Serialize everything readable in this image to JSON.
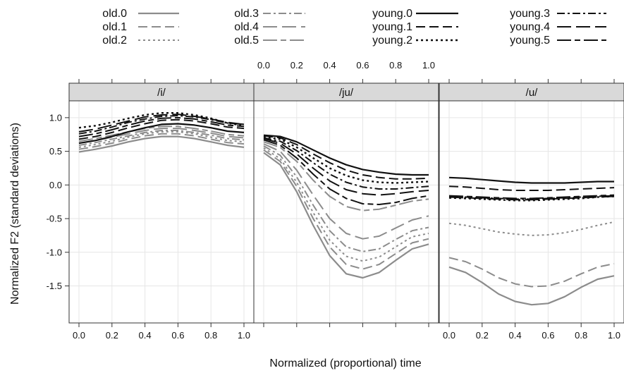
{
  "chart_data": {
    "type": "line",
    "xlabel": "Normalized (proportional) time",
    "ylabel": "Normalized F2 (standard deviations)",
    "xlim": [
      -0.05,
      1.05
    ],
    "ylim": [
      -2.05,
      1.25
    ],
    "x_ticks": [
      0.0,
      0.2,
      0.4,
      0.6,
      0.8,
      1.0
    ],
    "x_tick_labels": [
      "0.0",
      "0.2",
      "0.4",
      "0.6",
      "0.8",
      "1.0"
    ],
    "y_ticks": [
      1.0,
      0.5,
      0.0,
      -0.5,
      -1.0,
      -1.5
    ],
    "y_tick_labels": [
      "1.0",
      "0.5",
      "0.0",
      "-0.5",
      "-1.0",
      "-1.5"
    ],
    "grid": true,
    "legend_position": "top",
    "x": [
      0.0,
      0.1,
      0.2,
      0.3,
      0.4,
      0.5,
      0.6,
      0.7,
      0.8,
      0.9,
      1.0
    ],
    "series_styles": [
      {
        "name": "old.0",
        "color": "#8c8c8c",
        "dash": "",
        "width": 2.2
      },
      {
        "name": "old.1",
        "color": "#8c8c8c",
        "dash": "13 6",
        "width": 2
      },
      {
        "name": "old.2",
        "color": "#8c8c8c",
        "dash": "3 4",
        "width": 2
      },
      {
        "name": "old.3",
        "color": "#8c8c8c",
        "dash": "11 4 3 4",
        "width": 2
      },
      {
        "name": "old.4",
        "color": "#8c8c8c",
        "dash": "20 7",
        "width": 2
      },
      {
        "name": "old.5",
        "color": "#8c8c8c",
        "dash": "20 5 8 5",
        "width": 2
      },
      {
        "name": "young.0",
        "color": "#111111",
        "dash": "",
        "width": 2.2
      },
      {
        "name": "young.1",
        "color": "#111111",
        "dash": "13 6",
        "width": 2
      },
      {
        "name": "young.2",
        "color": "#111111",
        "dash": "3 4",
        "width": 2.4
      },
      {
        "name": "young.3",
        "color": "#111111",
        "dash": "11 4 3 4",
        "width": 2
      },
      {
        "name": "young.4",
        "color": "#111111",
        "dash": "20 7",
        "width": 2
      },
      {
        "name": "young.5",
        "color": "#111111",
        "dash": "20 5 8 5",
        "width": 2
      }
    ],
    "panels": [
      {
        "title": "/i/",
        "series": [
          {
            "name": "old.0",
            "values": [
              0.49,
              0.53,
              0.58,
              0.64,
              0.69,
              0.72,
              0.72,
              0.69,
              0.64,
              0.59,
              0.56
            ]
          },
          {
            "name": "old.1",
            "values": [
              0.53,
              0.57,
              0.62,
              0.68,
              0.73,
              0.76,
              0.76,
              0.73,
              0.68,
              0.63,
              0.61
            ]
          },
          {
            "name": "old.2",
            "values": [
              0.56,
              0.6,
              0.65,
              0.71,
              0.76,
              0.79,
              0.79,
              0.76,
              0.71,
              0.66,
              0.64
            ]
          },
          {
            "name": "old.3",
            "values": [
              0.59,
              0.63,
              0.68,
              0.73,
              0.78,
              0.81,
              0.81,
              0.78,
              0.74,
              0.69,
              0.67
            ]
          },
          {
            "name": "old.4",
            "values": [
              0.62,
              0.66,
              0.71,
              0.76,
              0.81,
              0.84,
              0.84,
              0.81,
              0.77,
              0.72,
              0.7
            ]
          },
          {
            "name": "old.5",
            "values": [
              0.65,
              0.69,
              0.74,
              0.79,
              0.84,
              0.87,
              0.87,
              0.84,
              0.8,
              0.75,
              0.73
            ]
          },
          {
            "name": "young.0",
            "values": [
              0.62,
              0.66,
              0.72,
              0.79,
              0.85,
              0.9,
              0.91,
              0.89,
              0.85,
              0.8,
              0.78
            ]
          },
          {
            "name": "young.1",
            "values": [
              0.68,
              0.72,
              0.78,
              0.85,
              0.91,
              0.96,
              0.97,
              0.95,
              0.91,
              0.86,
              0.84
            ]
          },
          {
            "name": "young.2",
            "values": [
              0.85,
              0.88,
              0.93,
              0.99,
              1.04,
              1.07,
              1.07,
              1.04,
              0.99,
              0.92,
              0.88
            ]
          },
          {
            "name": "young.3",
            "values": [
              0.76,
              0.8,
              0.86,
              0.93,
              0.98,
              1.02,
              1.03,
              1.01,
              0.97,
              0.92,
              0.9
            ]
          },
          {
            "name": "young.4",
            "values": [
              0.79,
              0.83,
              0.89,
              0.95,
              1.01,
              1.04,
              1.05,
              1.02,
              0.98,
              0.93,
              0.9
            ]
          },
          {
            "name": "young.5",
            "values": [
              0.72,
              0.76,
              0.82,
              0.89,
              0.95,
              0.99,
              1.0,
              0.98,
              0.94,
              0.89,
              0.87
            ]
          }
        ]
      },
      {
        "title": "/ju/",
        "series": [
          {
            "name": "old.0",
            "values": [
              0.48,
              0.3,
              -0.1,
              -0.6,
              -1.05,
              -1.32,
              -1.38,
              -1.3,
              -1.12,
              -0.95,
              -0.88
            ]
          },
          {
            "name": "old.1",
            "values": [
              0.52,
              0.35,
              -0.02,
              -0.5,
              -0.92,
              -1.18,
              -1.25,
              -1.18,
              -1.02,
              -0.86,
              -0.8
            ]
          },
          {
            "name": "old.2",
            "values": [
              0.55,
              0.39,
              0.04,
              -0.41,
              -0.82,
              -1.06,
              -1.13,
              -1.07,
              -0.92,
              -0.77,
              -0.72
            ]
          },
          {
            "name": "old.3",
            "values": [
              0.58,
              0.44,
              0.12,
              -0.3,
              -0.68,
              -0.92,
              -0.99,
              -0.95,
              -0.81,
              -0.68,
              -0.63
            ]
          },
          {
            "name": "old.4",
            "values": [
              0.61,
              0.5,
              0.22,
              -0.15,
              -0.5,
              -0.72,
              -0.8,
              -0.76,
              -0.64,
              -0.52,
              -0.46
            ]
          },
          {
            "name": "old.5",
            "values": [
              0.64,
              0.56,
              0.35,
              0.07,
              -0.17,
              -0.32,
              -0.38,
              -0.36,
              -0.3,
              -0.24,
              -0.21
            ]
          },
          {
            "name": "young.0",
            "values": [
              0.74,
              0.72,
              0.64,
              0.52,
              0.4,
              0.3,
              0.23,
              0.19,
              0.16,
              0.15,
              0.15
            ]
          },
          {
            "name": "young.1",
            "values": [
              0.73,
              0.7,
              0.6,
              0.46,
              0.33,
              0.22,
              0.15,
              0.11,
              0.09,
              0.09,
              0.1
            ]
          },
          {
            "name": "young.2",
            "values": [
              0.72,
              0.68,
              0.56,
              0.4,
              0.25,
              0.14,
              0.07,
              0.04,
              0.03,
              0.04,
              0.05
            ]
          },
          {
            "name": "young.3",
            "values": [
              0.7,
              0.65,
              0.51,
              0.33,
              0.16,
              0.04,
              -0.03,
              -0.06,
              -0.06,
              -0.04,
              -0.02
            ]
          },
          {
            "name": "young.4",
            "values": [
              0.69,
              0.62,
              0.46,
              0.25,
              0.06,
              -0.07,
              -0.13,
              -0.15,
              -0.13,
              -0.1,
              -0.08
            ]
          },
          {
            "name": "young.5",
            "values": [
              0.67,
              0.59,
              0.4,
              0.16,
              -0.06,
              -0.2,
              -0.28,
              -0.29,
              -0.26,
              -0.2,
              -0.16
            ]
          }
        ]
      },
      {
        "title": "/u/",
        "series": [
          {
            "name": "old.0",
            "values": [
              -1.22,
              -1.3,
              -1.45,
              -1.62,
              -1.73,
              -1.78,
              -1.76,
              -1.66,
              -1.52,
              -1.4,
              -1.35
            ]
          },
          {
            "name": "old.1",
            "values": [
              -1.08,
              -1.14,
              -1.25,
              -1.38,
              -1.47,
              -1.51,
              -1.5,
              -1.43,
              -1.32,
              -1.22,
              -1.17
            ]
          },
          {
            "name": "old.2",
            "values": [
              -0.57,
              -0.6,
              -0.65,
              -0.7,
              -0.73,
              -0.75,
              -0.74,
              -0.71,
              -0.66,
              -0.6,
              -0.55
            ]
          },
          {
            "name": "young.0",
            "values": [
              0.11,
              0.1,
              0.08,
              0.06,
              0.04,
              0.03,
              0.03,
              0.03,
              0.04,
              0.05,
              0.05
            ]
          },
          {
            "name": "young.1",
            "values": [
              -0.02,
              -0.03,
              -0.05,
              -0.07,
              -0.08,
              -0.08,
              -0.08,
              -0.07,
              -0.06,
              -0.05,
              -0.04
            ]
          },
          {
            "name": "young.2",
            "values": [
              -0.19,
              -0.2,
              -0.21,
              -0.22,
              -0.23,
              -0.23,
              -0.22,
              -0.21,
              -0.2,
              -0.18,
              -0.17
            ]
          },
          {
            "name": "young.3",
            "values": [
              -0.17,
              -0.18,
              -0.19,
              -0.2,
              -0.21,
              -0.21,
              -0.2,
              -0.19,
              -0.18,
              -0.17,
              -0.16
            ]
          },
          {
            "name": "young.4",
            "values": [
              -0.18,
              -0.19,
              -0.2,
              -0.21,
              -0.22,
              -0.22,
              -0.21,
              -0.2,
              -0.19,
              -0.18,
              -0.17
            ]
          },
          {
            "name": "young.5",
            "values": [
              -0.16,
              -0.17,
              -0.18,
              -0.19,
              -0.2,
              -0.2,
              -0.19,
              -0.18,
              -0.17,
              -0.16,
              -0.15
            ]
          }
        ]
      }
    ]
  }
}
